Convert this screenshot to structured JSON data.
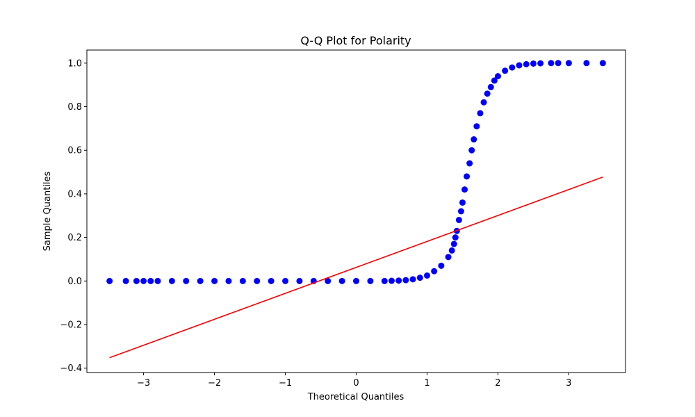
{
  "colors": {
    "points": "#0000ff",
    "reference_line": "#ff0000"
  },
  "chart_data": {
    "type": "scatter",
    "title": "Q-Q Plot for Polarity",
    "xlabel": "Theoretical Quantiles",
    "ylabel": "Sample Quantiles",
    "xlim": [
      -3.8,
      3.8
    ],
    "ylim": [
      -0.42,
      1.06
    ],
    "x_ticks": [
      -3,
      -2,
      -1,
      0,
      1,
      2,
      3
    ],
    "x_tick_labels": [
      "−3",
      "−2",
      "−1",
      "0",
      "1",
      "2",
      "3"
    ],
    "y_ticks": [
      -0.4,
      -0.2,
      0.0,
      0.2,
      0.4,
      0.6,
      0.8,
      1.0
    ],
    "y_tick_labels": [
      "−0.4",
      "−0.2",
      "0.0",
      "0.2",
      "0.4",
      "0.6",
      "0.8",
      "1.0"
    ],
    "grid": false,
    "series": [
      {
        "type": "scatter",
        "points": [
          [
            -3.48,
            0.0
          ],
          [
            -3.25,
            0.0
          ],
          [
            -3.1,
            0.0
          ],
          [
            -3.0,
            0.0
          ],
          [
            -2.9,
            0.0
          ],
          [
            -2.8,
            0.0
          ],
          [
            -2.6,
            0.0
          ],
          [
            -2.4,
            0.0
          ],
          [
            -2.2,
            0.0
          ],
          [
            -2.0,
            0.0
          ],
          [
            -1.8,
            0.0
          ],
          [
            -1.6,
            0.0
          ],
          [
            -1.4,
            0.0
          ],
          [
            -1.2,
            0.0
          ],
          [
            -1.0,
            0.0
          ],
          [
            -0.8,
            0.0
          ],
          [
            -0.6,
            0.0
          ],
          [
            -0.4,
            0.0
          ],
          [
            -0.2,
            0.0
          ],
          [
            0.0,
            0.0
          ],
          [
            0.2,
            0.0
          ],
          [
            0.4,
            0.0
          ],
          [
            0.5,
            0.001
          ],
          [
            0.6,
            0.002
          ],
          [
            0.7,
            0.004
          ],
          [
            0.8,
            0.008
          ],
          [
            0.9,
            0.015
          ],
          [
            1.0,
            0.025
          ],
          [
            1.1,
            0.045
          ],
          [
            1.2,
            0.07
          ],
          [
            1.3,
            0.11
          ],
          [
            1.35,
            0.14
          ],
          [
            1.38,
            0.17
          ],
          [
            1.4,
            0.2
          ],
          [
            1.42,
            0.23
          ],
          [
            1.45,
            0.28
          ],
          [
            1.48,
            0.32
          ],
          [
            1.5,
            0.36
          ],
          [
            1.53,
            0.42
          ],
          [
            1.56,
            0.48
          ],
          [
            1.6,
            0.54
          ],
          [
            1.63,
            0.6
          ],
          [
            1.66,
            0.65
          ],
          [
            1.7,
            0.71
          ],
          [
            1.75,
            0.77
          ],
          [
            1.8,
            0.82
          ],
          [
            1.85,
            0.86
          ],
          [
            1.9,
            0.89
          ],
          [
            1.95,
            0.92
          ],
          [
            2.0,
            0.94
          ],
          [
            2.1,
            0.965
          ],
          [
            2.2,
            0.98
          ],
          [
            2.3,
            0.99
          ],
          [
            2.4,
            0.995
          ],
          [
            2.5,
            0.998
          ],
          [
            2.6,
            0.999
          ],
          [
            2.75,
            1.0
          ],
          [
            2.85,
            1.0
          ],
          [
            3.0,
            1.0
          ],
          [
            3.25,
            1.0
          ],
          [
            3.48,
            1.0
          ]
        ]
      },
      {
        "type": "line",
        "points": [
          [
            -3.48,
            -0.352
          ],
          [
            3.48,
            0.477
          ]
        ]
      }
    ]
  }
}
